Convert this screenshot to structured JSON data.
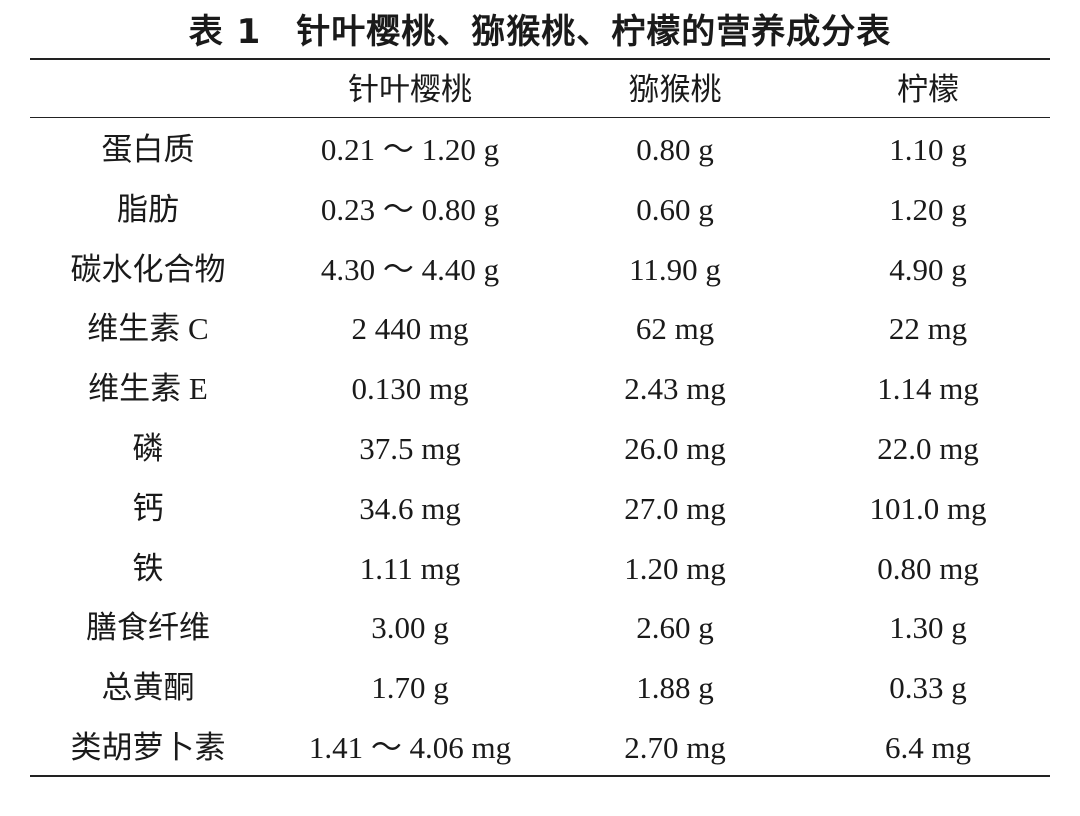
{
  "title": "表 1　针叶樱桃、猕猴桃、柠檬的营养成分表",
  "table": {
    "columns": [
      "针叶樱桃",
      "猕猴桃",
      "柠檬"
    ],
    "rows": [
      [
        "蛋白质",
        "0.21 ～ 1.20 g",
        "0.80 g",
        "1.10 g"
      ],
      [
        "脂肪",
        "0.23 ～ 0.80 g",
        "0.60 g",
        "1.20 g"
      ],
      [
        "碳水化合物",
        "4.30 ～ 4.40 g",
        "11.90 g",
        "4.90 g"
      ],
      [
        "维生素 C",
        "2 440 mg",
        "62 mg",
        "22 mg"
      ],
      [
        "维生素 E",
        "0.130 mg",
        "2.43 mg",
        "1.14 mg"
      ],
      [
        "磷",
        "37.5 mg",
        "26.0 mg",
        "22.0 mg"
      ],
      [
        "钙",
        "34.6 mg",
        "27.0 mg",
        "101.0 mg"
      ],
      [
        "铁",
        "1.11 mg",
        "1.20 mg",
        "0.80 mg"
      ],
      [
        "膳食纤维",
        "3.00 g",
        "2.60 g",
        "1.30 g"
      ],
      [
        "总黄酮",
        "1.70 g",
        "1.88 g",
        "0.33 g"
      ],
      [
        "类胡萝卜素",
        "1.41 ～ 4.06 mg",
        "2.70 mg",
        "6.4 mg"
      ]
    ]
  }
}
